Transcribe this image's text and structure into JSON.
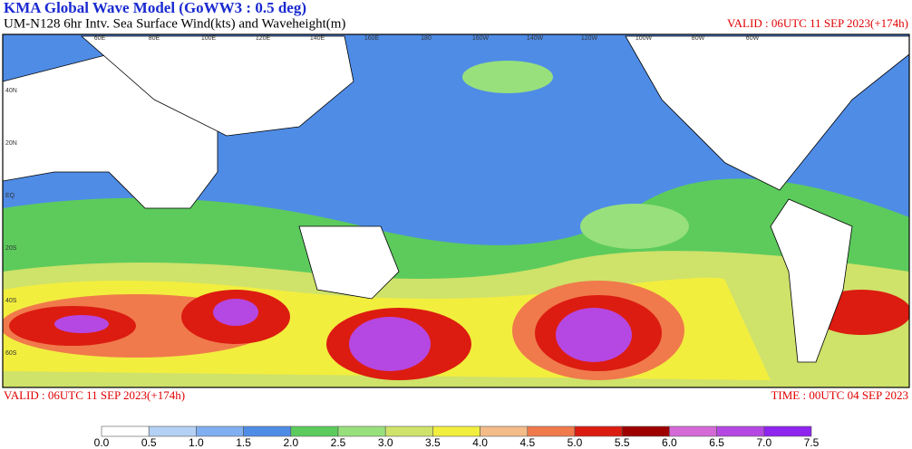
{
  "header": {
    "title": "KMA  Global Wave Model (GoWW3 : 0.5 deg)",
    "subtitle": "UM-N128  6hr Intv. Sea Surface Wind(kts) and Waveheight(m)",
    "valid_top": "VALID : 06UTC 11 SEP 2023(+174h)"
  },
  "footer": {
    "valid": "VALID : 06UTC 11 SEP 2023(+174h)",
    "time": "TIME : 00UTC 04 SEP 2023"
  },
  "map": {
    "lat_labels": [
      "40N",
      "20N",
      "EQ",
      "20S",
      "40S",
      "60S"
    ],
    "lon_labels": [
      "60E",
      "80E",
      "100E",
      "120E",
      "140E",
      "160E",
      "180",
      "160W",
      "140W",
      "120W",
      "100W",
      "80W",
      "60W"
    ]
  },
  "colorbar": {
    "labels": [
      "0.0",
      "0.5",
      "1.0",
      "1.5",
      "2.0",
      "2.5",
      "3.0",
      "3.5",
      "4.0",
      "4.5",
      "5.0",
      "5.5",
      "6.0",
      "6.5",
      "7.0",
      "7.5"
    ],
    "colors": [
      "#ffffff",
      "#b4d0f4",
      "#80aef0",
      "#4f8ce6",
      "#5ccb5c",
      "#98e07c",
      "#cfe26a",
      "#f2ee3e",
      "#f3bc88",
      "#f07a4c",
      "#dc1c10",
      "#9e0000",
      "#d46ad6",
      "#b548e2",
      "#8e24ee"
    ]
  }
}
